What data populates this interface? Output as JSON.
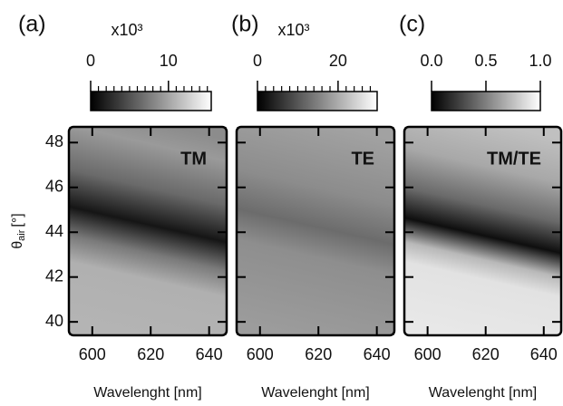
{
  "chart_data": [
    {
      "type": "heatmap",
      "panel_label": "(a)",
      "annotation": "TM",
      "colorbar_multiplier": "x10³",
      "colorbar_lim": [
        0,
        15.5
      ],
      "colorbar_ticks": [
        0,
        10
      ],
      "colorbar_minor_ticks": [
        1,
        2,
        3,
        4,
        5,
        6,
        7,
        8,
        9,
        11,
        12,
        13,
        14,
        15
      ],
      "xlabel": "Wavelenght [nm]",
      "xlim": [
        592,
        646
      ],
      "xticks": [
        600,
        620,
        640
      ],
      "ylabel": "θ",
      "ylabel_sub": "air",
      "ylabel_unit": "[°]",
      "ylim": [
        39.4,
        48.7
      ],
      "yticks": [
        40,
        42,
        44,
        46,
        48
      ]
    },
    {
      "type": "heatmap",
      "panel_label": "(b)",
      "annotation": "TE",
      "colorbar_multiplier": "x10³",
      "colorbar_lim": [
        0,
        29.7
      ],
      "colorbar_ticks": [
        0,
        20
      ],
      "colorbar_minor_ticks": [
        2,
        4,
        6,
        8,
        10,
        12,
        14,
        16,
        18,
        22,
        24,
        26,
        28
      ],
      "xlabel": "Wavelenght [nm]",
      "xlim": [
        592,
        646
      ],
      "xticks": [
        600,
        620,
        640
      ]
    },
    {
      "type": "heatmap",
      "panel_label": "(c)",
      "annotation": "TM/TE",
      "colorbar_lim": [
        0,
        1
      ],
      "colorbar_ticks": [
        {
          "value": 0,
          "label": "0.0"
        },
        0.5,
        {
          "value": 1,
          "label": "1.0"
        }
      ],
      "xlabel": "Wavelenght [nm]",
      "xlim": [
        592,
        646
      ],
      "xticks": [
        600,
        620,
        640
      ]
    }
  ]
}
